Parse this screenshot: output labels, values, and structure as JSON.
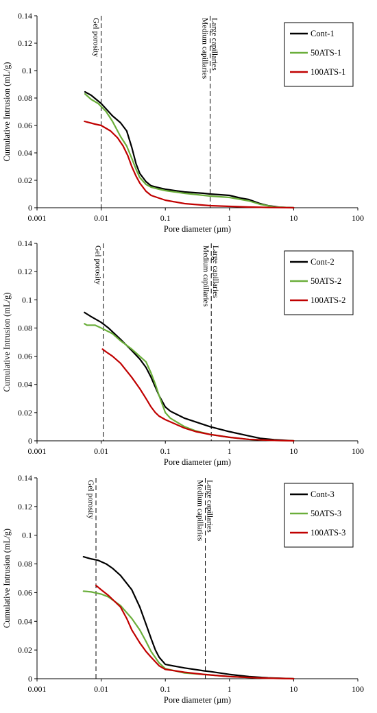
{
  "chart_data": [
    {
      "type": "line",
      "xlabel": "Pore diameter (µm)",
      "ylabel": "Cumulative Intrusion (mL/g)",
      "xscale": "log",
      "xlim": [
        0.001,
        100
      ],
      "ylim": [
        0,
        0.14
      ],
      "x_ticks": [
        "0.001",
        "0.01",
        "0.1",
        "1",
        "10",
        "100"
      ],
      "y_ticks": [
        "0",
        "0.02",
        "0.04",
        "0.06",
        "0.08",
        "0.1",
        "0.12",
        "0.14"
      ],
      "legend_position": "top-right",
      "vlines": [
        {
          "x": 0.01,
          "labels": [
            "Gel porosity"
          ],
          "side": "left"
        },
        {
          "x": 0.5,
          "labels": [
            "Medium capillaries",
            "Large capillaries"
          ],
          "side": "both"
        }
      ],
      "series": [
        {
          "name": "Cont-1",
          "color": "#000000",
          "points": [
            [
              0.0056,
              0.0845
            ],
            [
              0.007,
              0.082
            ],
            [
              0.01,
              0.076
            ],
            [
              0.015,
              0.067
            ],
            [
              0.02,
              0.062
            ],
            [
              0.025,
              0.056
            ],
            [
              0.03,
              0.044
            ],
            [
              0.035,
              0.032
            ],
            [
              0.04,
              0.025
            ],
            [
              0.05,
              0.019
            ],
            [
              0.06,
              0.016
            ],
            [
              0.08,
              0.0145
            ],
            [
              0.1,
              0.0135
            ],
            [
              0.2,
              0.0115
            ],
            [
              0.4,
              0.0105
            ],
            [
              0.5,
              0.01
            ],
            [
              1,
              0.009
            ],
            [
              1.5,
              0.007
            ],
            [
              2,
              0.006
            ],
            [
              3,
              0.003
            ],
            [
              4,
              0.0015
            ],
            [
              6,
              0.0004
            ],
            [
              10,
              0.0
            ]
          ]
        },
        {
          "name": "50ATS-1",
          "color": "#6aae3a",
          "points": [
            [
              0.0056,
              0.083
            ],
            [
              0.007,
              0.079
            ],
            [
              0.009,
              0.076
            ],
            [
              0.012,
              0.07
            ],
            [
              0.015,
              0.063
            ],
            [
              0.02,
              0.052
            ],
            [
              0.025,
              0.045
            ],
            [
              0.03,
              0.036
            ],
            [
              0.035,
              0.028
            ],
            [
              0.04,
              0.022
            ],
            [
              0.05,
              0.017
            ],
            [
              0.06,
              0.015
            ],
            [
              0.08,
              0.0135
            ],
            [
              0.1,
              0.0125
            ],
            [
              0.2,
              0.0105
            ],
            [
              0.5,
              0.0085
            ],
            [
              1,
              0.0075
            ],
            [
              2,
              0.005
            ],
            [
              3,
              0.0025
            ],
            [
              5,
              0.0005
            ],
            [
              10,
              0.0
            ]
          ]
        },
        {
          "name": "100ATS-1",
          "color": "#c00000",
          "points": [
            [
              0.0055,
              0.063
            ],
            [
              0.006,
              0.0625
            ],
            [
              0.008,
              0.061
            ],
            [
              0.01,
              0.06
            ],
            [
              0.014,
              0.056
            ],
            [
              0.018,
              0.051
            ],
            [
              0.022,
              0.045
            ],
            [
              0.026,
              0.038
            ],
            [
              0.03,
              0.03
            ],
            [
              0.035,
              0.023
            ],
            [
              0.04,
              0.018
            ],
            [
              0.05,
              0.012
            ],
            [
              0.06,
              0.009
            ],
            [
              0.08,
              0.007
            ],
            [
              0.1,
              0.0055
            ],
            [
              0.2,
              0.003
            ],
            [
              0.5,
              0.0015
            ],
            [
              1,
              0.001
            ],
            [
              2,
              0.0005
            ],
            [
              4,
              0.0002
            ],
            [
              10,
              0.0
            ]
          ]
        }
      ]
    },
    {
      "type": "line",
      "xlabel": "Pore diameter (µm)",
      "ylabel": "Cumulative Intrusion (mL/g)",
      "xscale": "log",
      "xlim": [
        0.001,
        100
      ],
      "ylim": [
        0,
        0.14
      ],
      "x_ticks": [
        "0.001",
        "0.01",
        "0.1",
        "1",
        "10",
        "100"
      ],
      "y_ticks": [
        "0",
        "0.02",
        "0.04",
        "0.06",
        "0.08",
        "0.1",
        "0.12",
        "0.14"
      ],
      "legend_position": "top-right",
      "vlines": [
        {
          "x": 0.0108,
          "labels": [
            "Gel porosity"
          ],
          "side": "left"
        },
        {
          "x": 0.52,
          "labels": [
            "Medium capillaries",
            "Large capillaries"
          ],
          "side": "both"
        }
      ],
      "series": [
        {
          "name": "Cont-2",
          "color": "#000000",
          "points": [
            [
              0.0055,
              0.091
            ],
            [
              0.007,
              0.088
            ],
            [
              0.01,
              0.084
            ],
            [
              0.013,
              0.08
            ],
            [
              0.02,
              0.072
            ],
            [
              0.03,
              0.064
            ],
            [
              0.04,
              0.058
            ],
            [
              0.05,
              0.052
            ],
            [
              0.06,
              0.045
            ],
            [
              0.07,
              0.038
            ],
            [
              0.08,
              0.032
            ],
            [
              0.1,
              0.024
            ],
            [
              0.12,
              0.021
            ],
            [
              0.2,
              0.016
            ],
            [
              0.5,
              0.01
            ],
            [
              1,
              0.0065
            ],
            [
              2,
              0.0035
            ],
            [
              3,
              0.0018
            ],
            [
              5,
              0.0008
            ],
            [
              10,
              0.0
            ]
          ]
        },
        {
          "name": "50ATS-2",
          "color": "#6aae3a",
          "points": [
            [
              0.0055,
              0.083
            ],
            [
              0.006,
              0.082
            ],
            [
              0.008,
              0.082
            ],
            [
              0.01,
              0.08
            ],
            [
              0.015,
              0.076
            ],
            [
              0.02,
              0.071
            ],
            [
              0.03,
              0.065
            ],
            [
              0.05,
              0.056
            ],
            [
              0.06,
              0.048
            ],
            [
              0.07,
              0.04
            ],
            [
              0.08,
              0.032
            ],
            [
              0.1,
              0.02
            ],
            [
              0.12,
              0.016
            ],
            [
              0.2,
              0.01
            ],
            [
              0.3,
              0.007
            ],
            [
              0.5,
              0.0045
            ],
            [
              1,
              0.0025
            ],
            [
              2,
              0.001
            ],
            [
              5,
              0.0003
            ],
            [
              10,
              0.0
            ]
          ]
        },
        {
          "name": "100ATS-2",
          "color": "#c00000",
          "points": [
            [
              0.0105,
              0.065
            ],
            [
              0.012,
              0.063
            ],
            [
              0.015,
              0.06
            ],
            [
              0.02,
              0.055
            ],
            [
              0.03,
              0.045
            ],
            [
              0.04,
              0.037
            ],
            [
              0.05,
              0.03
            ],
            [
              0.06,
              0.024
            ],
            [
              0.07,
              0.02
            ],
            [
              0.08,
              0.0175
            ],
            [
              0.1,
              0.015
            ],
            [
              0.15,
              0.0115
            ],
            [
              0.2,
              0.009
            ],
            [
              0.3,
              0.0065
            ],
            [
              0.5,
              0.0045
            ],
            [
              1,
              0.0025
            ],
            [
              2,
              0.001
            ],
            [
              5,
              0.0003
            ],
            [
              10,
              0.0
            ]
          ]
        }
      ]
    },
    {
      "type": "line",
      "xlabel": "Pore diameter (µm)",
      "ylabel": "Cumulative Intrusion (mL/g)",
      "xscale": "log",
      "xlim": [
        0.001,
        100
      ],
      "ylim": [
        0,
        0.14
      ],
      "x_ticks": [
        "0.001",
        "0.01",
        "0.1",
        "1",
        "10",
        "100"
      ],
      "y_ticks": [
        "0",
        "0.02",
        "0.04",
        "0.06",
        "0.08",
        "0.1",
        "0.12",
        "0.14"
      ],
      "legend_position": "top-right",
      "vlines": [
        {
          "x": 0.0083,
          "labels": [
            "Gel porosity"
          ],
          "side": "left"
        },
        {
          "x": 0.42,
          "labels": [
            "Medium capillaries",
            "Large capillaries"
          ],
          "side": "both"
        }
      ],
      "series": [
        {
          "name": "Cont-3",
          "color": "#000000",
          "points": [
            [
              0.0053,
              0.085
            ],
            [
              0.007,
              0.0835
            ],
            [
              0.009,
              0.0825
            ],
            [
              0.012,
              0.08
            ],
            [
              0.015,
              0.077
            ],
            [
              0.02,
              0.072
            ],
            [
              0.03,
              0.062
            ],
            [
              0.04,
              0.05
            ],
            [
              0.05,
              0.038
            ],
            [
              0.06,
              0.028
            ],
            [
              0.07,
              0.02
            ],
            [
              0.08,
              0.015
            ],
            [
              0.1,
              0.01
            ],
            [
              0.15,
              0.0085
            ],
            [
              0.2,
              0.0075
            ],
            [
              0.4,
              0.0055
            ],
            [
              0.5,
              0.005
            ],
            [
              1,
              0.003
            ],
            [
              2,
              0.0015
            ],
            [
              4,
              0.0006
            ],
            [
              10,
              0.0
            ]
          ]
        },
        {
          "name": "50ATS-3",
          "color": "#6aae3a",
          "points": [
            [
              0.0053,
              0.061
            ],
            [
              0.007,
              0.0605
            ],
            [
              0.01,
              0.059
            ],
            [
              0.013,
              0.057
            ],
            [
              0.02,
              0.051
            ],
            [
              0.03,
              0.042
            ],
            [
              0.04,
              0.034
            ],
            [
              0.05,
              0.026
            ],
            [
              0.06,
              0.019
            ],
            [
              0.08,
              0.011
            ],
            [
              0.1,
              0.007
            ],
            [
              0.2,
              0.004
            ],
            [
              0.4,
              0.003
            ],
            [
              1,
              0.0015
            ],
            [
              3,
              0.0005
            ],
            [
              10,
              0.0
            ]
          ]
        },
        {
          "name": "100ATS-3",
          "color": "#c00000",
          "points": [
            [
              0.0083,
              0.065
            ],
            [
              0.01,
              0.062
            ],
            [
              0.013,
              0.058
            ],
            [
              0.02,
              0.05
            ],
            [
              0.025,
              0.042
            ],
            [
              0.03,
              0.034
            ],
            [
              0.04,
              0.025
            ],
            [
              0.05,
              0.019
            ],
            [
              0.06,
              0.015
            ],
            [
              0.08,
              0.009
            ],
            [
              0.1,
              0.0065
            ],
            [
              0.2,
              0.0045
            ],
            [
              0.4,
              0.003
            ],
            [
              1,
              0.0015
            ],
            [
              3,
              0.0005
            ],
            [
              10,
              0.0
            ]
          ]
        }
      ]
    }
  ]
}
